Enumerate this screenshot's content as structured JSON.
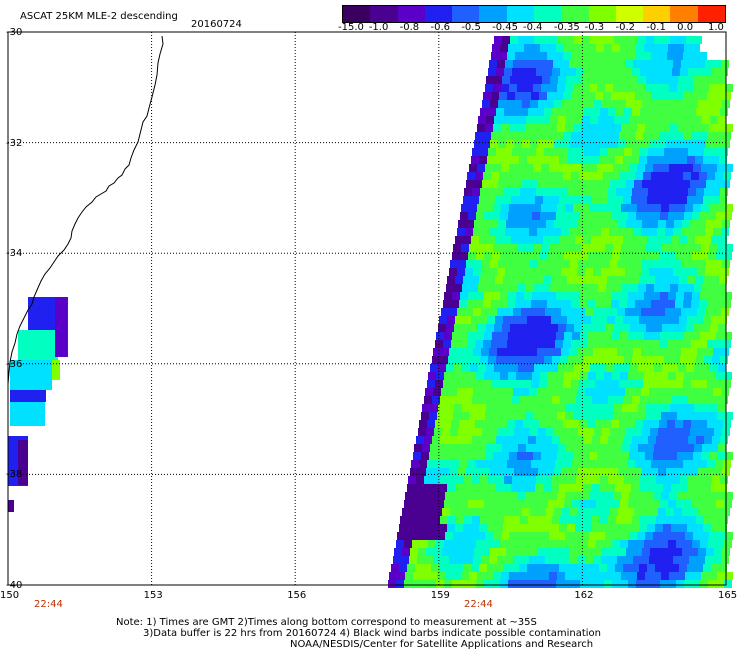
{
  "header": {
    "title": "ASCAT 25KM MLE-2 descending",
    "date": "20160724"
  },
  "colorbar": {
    "labels": [
      "-15.0",
      "-1.0",
      "-0.8",
      "-0.6",
      "-0.5",
      "-0.45",
      "-0.4",
      "-0.35",
      "-0.3",
      "-0.2",
      "-0.1",
      "0.0",
      "1.0"
    ],
    "colors": [
      "#3a0060",
      "#4a0090",
      "#5a00c8",
      "#2020f0",
      "#2060ff",
      "#00a0ff",
      "#00e0ff",
      "#00ffc0",
      "#40ff40",
      "#80ff00",
      "#d0ff00",
      "#ffd000",
      "#ff8000",
      "#ff2000"
    ]
  },
  "axes": {
    "x_ticks": [
      "150",
      "153",
      "156",
      "159",
      "162",
      "165"
    ],
    "y_ticks": [
      "-30",
      "-32",
      "-34",
      "-36",
      "-38",
      "-40"
    ],
    "lon_range": [
      150,
      165
    ],
    "lat_range": [
      -30,
      -40
    ]
  },
  "times": [
    "22:44",
    "22:44"
  ],
  "notes": {
    "line1": "Note: 1) Times are GMT 2)Times along bottom correspond to measurement at ~35S",
    "line2": "3)Data buffer is 22 hrs from 20160724 4) Black wind barbs indicate possible contamination",
    "line3": "NOAA/NESDIS/Center for Satellite Applications and Research"
  },
  "theme": {
    "time_color": "#c03000",
    "grid_color": "#000000"
  }
}
